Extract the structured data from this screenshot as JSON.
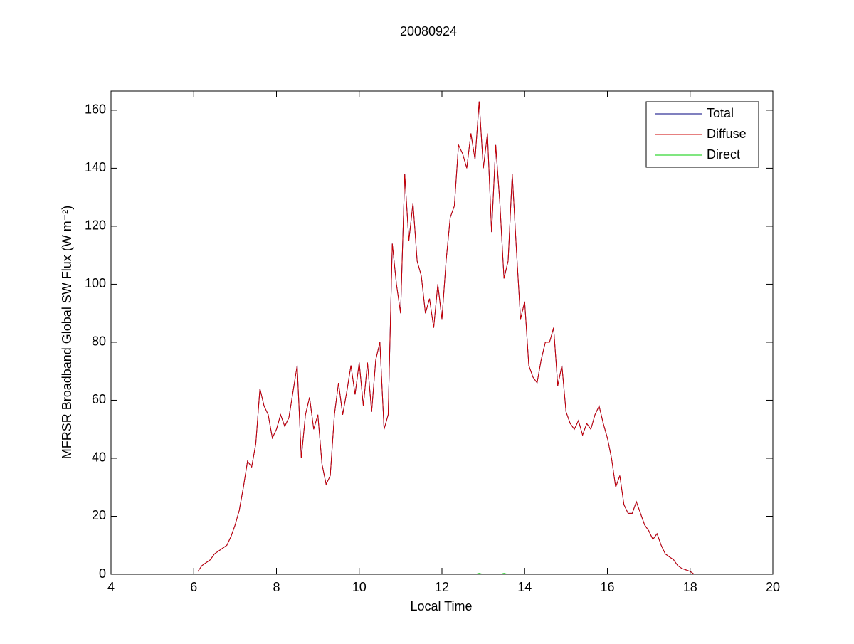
{
  "chart_data": {
    "type": "line",
    "title": "20080924",
    "xlabel": "Local Time",
    "ylabel": "MFRSR Broadband Global SW Flux (W m⁻²)",
    "x": [
      6.1,
      6.2,
      6.3,
      6.4,
      6.5,
      6.6,
      6.7,
      6.8,
      6.9,
      7.0,
      7.1,
      7.2,
      7.3,
      7.4,
      7.5,
      7.6,
      7.7,
      7.8,
      7.9,
      8.0,
      8.1,
      8.2,
      8.3,
      8.4,
      8.5,
      8.6,
      8.7,
      8.8,
      8.9,
      9.0,
      9.1,
      9.2,
      9.3,
      9.4,
      9.5,
      9.6,
      9.7,
      9.8,
      9.9,
      10.0,
      10.1,
      10.2,
      10.3,
      10.4,
      10.5,
      10.6,
      10.7,
      10.8,
      10.9,
      11.0,
      11.1,
      11.2,
      11.3,
      11.4,
      11.5,
      11.6,
      11.7,
      11.8,
      11.9,
      12.0,
      12.1,
      12.2,
      12.3,
      12.4,
      12.5,
      12.6,
      12.7,
      12.8,
      12.9,
      13.0,
      13.1,
      13.2,
      13.3,
      13.4,
      13.5,
      13.6,
      13.7,
      13.8,
      13.9,
      14.0,
      14.1,
      14.2,
      14.3,
      14.4,
      14.5,
      14.6,
      14.7,
      14.8,
      14.9,
      15.0,
      15.1,
      15.2,
      15.3,
      15.4,
      15.5,
      15.6,
      15.7,
      15.8,
      15.9,
      16.0,
      16.1,
      16.2,
      16.3,
      16.4,
      16.5,
      16.6,
      16.7,
      16.8,
      16.9,
      17.0,
      17.1,
      17.2,
      17.3,
      17.4,
      17.5,
      17.6,
      17.7,
      17.8,
      17.9,
      18.0,
      18.1
    ],
    "series": [
      {
        "name": "Total",
        "color": "#00007f",
        "values": [
          1,
          3,
          4,
          5,
          7,
          8,
          9,
          10,
          13,
          17,
          22,
          30,
          39,
          37,
          45,
          64,
          58,
          55,
          47,
          50,
          55,
          51,
          54,
          63,
          72,
          40,
          55,
          61,
          50,
          55,
          38,
          31,
          34,
          55,
          66,
          55,
          63,
          72,
          62,
          73,
          58,
          73,
          56,
          74,
          80,
          50,
          55,
          114,
          100,
          90,
          138,
          115,
          128,
          108,
          103,
          90,
          95,
          85,
          100,
          88,
          108,
          123,
          127,
          148,
          145,
          140,
          152,
          143,
          163,
          140,
          152,
          118,
          148,
          128,
          102,
          108,
          138,
          112,
          88,
          94,
          72,
          68,
          66,
          74,
          80,
          80,
          85,
          65,
          72,
          56,
          52,
          50,
          53,
          48,
          52,
          50,
          55,
          58,
          52,
          47,
          40,
          30,
          34,
          24,
          21,
          21,
          25,
          21,
          17,
          15,
          12,
          14,
          10,
          7,
          6,
          5,
          3,
          2,
          1.5,
          1,
          0
        ]
      },
      {
        "name": "Diffuse",
        "color": "#cc0000",
        "values": [
          1,
          3,
          4,
          5,
          7,
          8,
          9,
          10,
          13,
          17,
          22,
          30,
          39,
          37,
          45,
          64,
          58,
          55,
          47,
          50,
          55,
          51,
          54,
          63,
          72,
          40,
          55,
          61,
          50,
          55,
          38,
          31,
          34,
          55,
          66,
          55,
          63,
          72,
          62,
          73,
          58,
          73,
          56,
          74,
          80,
          50,
          55,
          114,
          100,
          90,
          138,
          115,
          128,
          108,
          103,
          90,
          95,
          85,
          100,
          88,
          108,
          123,
          127,
          148,
          145,
          140,
          152,
          143,
          163,
          140,
          152,
          118,
          148,
          128,
          102,
          108,
          138,
          112,
          88,
          94,
          72,
          68,
          66,
          74,
          80,
          80,
          85,
          65,
          72,
          56,
          52,
          50,
          53,
          48,
          52,
          50,
          55,
          58,
          52,
          47,
          40,
          30,
          34,
          24,
          21,
          21,
          25,
          21,
          17,
          15,
          12,
          14,
          10,
          7,
          6,
          5,
          3,
          2,
          1.5,
          1,
          0
        ]
      },
      {
        "name": "Direct",
        "color": "#00cc00",
        "values": [
          0,
          0,
          0,
          0,
          0,
          0,
          0,
          0,
          0,
          0,
          0,
          0,
          0,
          0,
          0,
          0,
          0,
          0,
          0,
          0,
          0,
          0,
          0,
          0,
          0,
          0,
          0,
          0,
          0,
          0,
          0,
          0,
          0,
          0,
          0,
          0,
          0,
          0,
          0,
          0,
          0,
          0,
          0,
          0,
          0,
          0,
          0,
          0,
          0,
          0,
          0,
          0,
          0,
          0,
          0,
          0,
          0,
          0,
          0,
          0,
          0,
          0,
          0,
          0,
          0,
          0,
          0,
          0,
          0.3,
          0,
          0,
          0,
          0,
          0,
          0.3,
          0,
          0,
          0,
          0,
          0,
          0,
          0,
          0,
          0,
          0,
          0,
          0,
          0,
          0,
          0,
          0,
          0,
          0,
          0,
          0,
          0,
          0,
          0,
          0,
          0,
          0,
          0,
          0,
          0,
          0,
          0,
          0,
          0,
          0,
          0,
          0,
          0,
          0,
          0,
          0,
          0,
          0,
          0,
          0,
          0,
          0
        ]
      }
    ],
    "xlim": [
      4,
      20
    ],
    "xticks": [
      4,
      6,
      8,
      10,
      12,
      14,
      16,
      18,
      20
    ],
    "ylim": [
      0,
      166.6
    ],
    "yticks": [
      0,
      20,
      40,
      60,
      80,
      100,
      120,
      140,
      160
    ],
    "legend": "upper right"
  }
}
